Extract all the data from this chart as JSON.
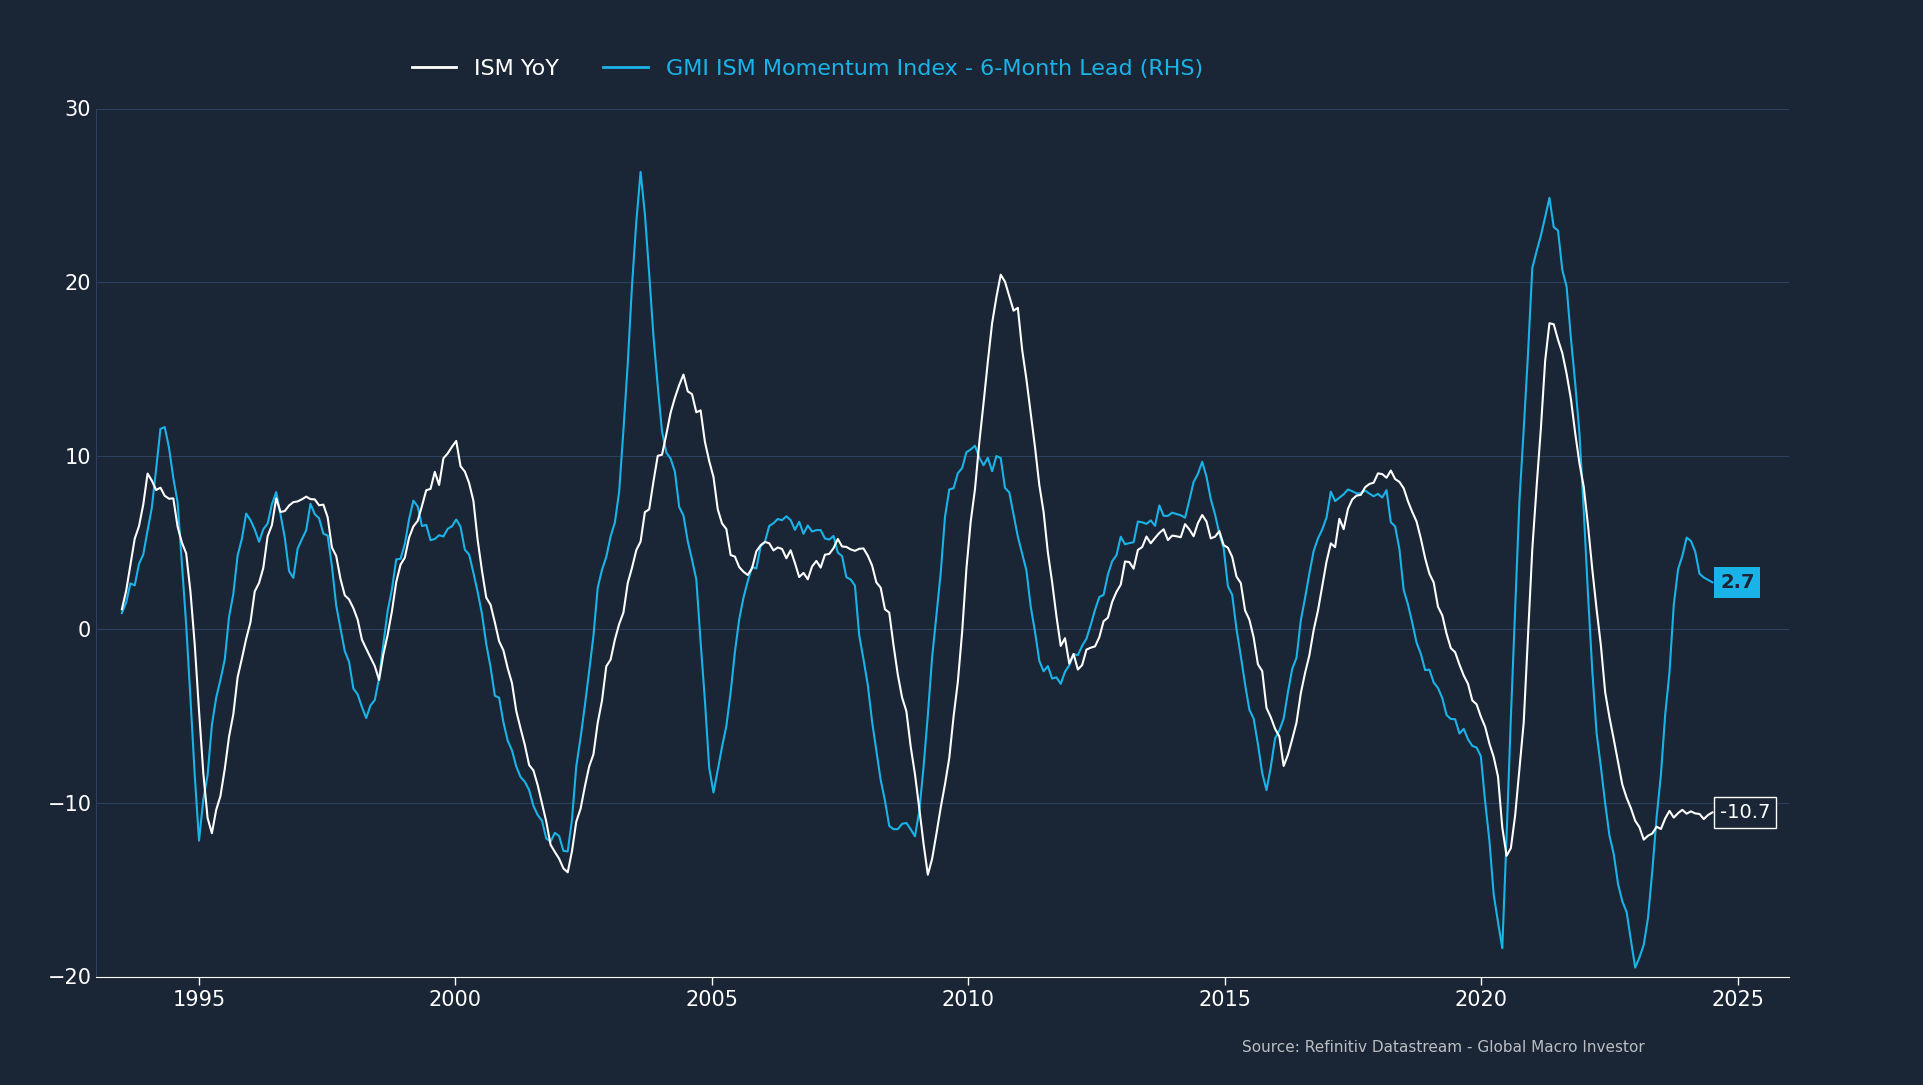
{
  "background_color": "#1a2535",
  "plot_bg_color": "#1e2d3e",
  "grid_color": "#2e4060",
  "text_color": "#ffffff",
  "source_text": "Source: Refinitiv Datastream - Global Macro Investor",
  "ism_yoy_color": "#ffffff",
  "gmi_color": "#1ab3e8",
  "ism_label": "ISM YoY",
  "gmi_label": "GMI ISM Momentum Index - 6-Month Lead (RHS)",
  "ylim": [
    -20,
    30
  ],
  "yticks": [
    -20,
    -10,
    0,
    10,
    20,
    30
  ],
  "xlim_start": 1993.0,
  "xlim_end": 2026.0,
  "xticks": [
    1995,
    2000,
    2005,
    2010,
    2015,
    2020,
    2025
  ],
  "end_label_ism": "-10.7",
  "end_label_gmi": "2.7",
  "end_label_ism_color": "#cccccc",
  "end_label_gmi_color": "#1ab3e8",
  "end_label_gmi_bg": "#1ab3e8",
  "end_label_gmi_text_color": "#1a2535"
}
